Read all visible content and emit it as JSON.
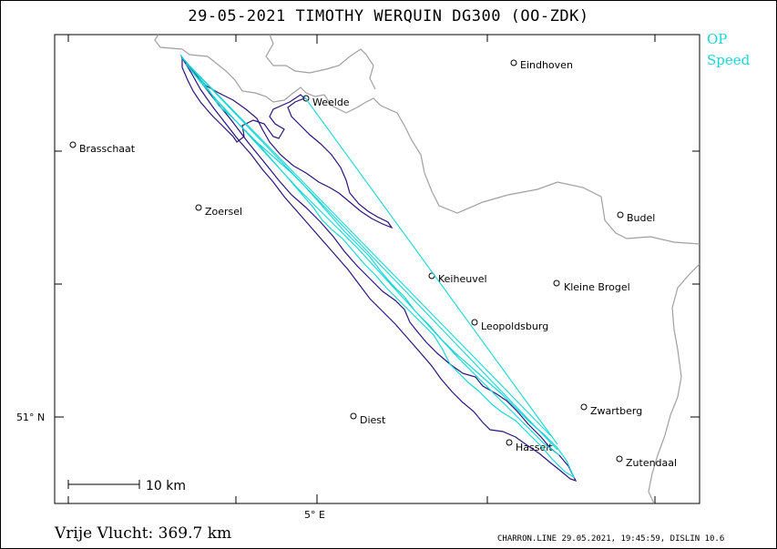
{
  "title": "29-05-2021   TIMOTHY WERQUIN   DG300 (OO-ZDK)",
  "legend": {
    "items": [
      "OP",
      "Speed"
    ],
    "color": "#19d6d6"
  },
  "colors": {
    "track_op": "#2a137d",
    "track_speed": "#19d6d6",
    "border": "#a0a0a0"
  },
  "places": [
    {
      "name": "Eindhoven",
      "id": "eindhoven"
    },
    {
      "name": "Weelde",
      "id": "weelde"
    },
    {
      "name": "Brasschaat",
      "id": "brasschaat"
    },
    {
      "name": "Zoersel",
      "id": "zoersel"
    },
    {
      "name": "Budel",
      "id": "budel"
    },
    {
      "name": "Keiheuvel",
      "id": "keiheuvel"
    },
    {
      "name": "Kleine Brogel",
      "id": "kleine-brogel"
    },
    {
      "name": "Leopoldsburg",
      "id": "leopoldsburg"
    },
    {
      "name": "Zwartberg",
      "id": "zwartberg"
    },
    {
      "name": "Diest",
      "id": "diest"
    },
    {
      "name": "Hasselt",
      "id": "hasselt"
    },
    {
      "name": "Zutendaal",
      "id": "zutendaal"
    }
  ],
  "axis": {
    "lat_label": "51° N",
    "lon_label": "5° E"
  },
  "scale_bar": {
    "label": "10 km"
  },
  "distance": "Vrije Vlucht:  369.7 km",
  "footer": "CHARRON.LINE 29.05.2021, 19:45:59, DISLIN 10.6"
}
